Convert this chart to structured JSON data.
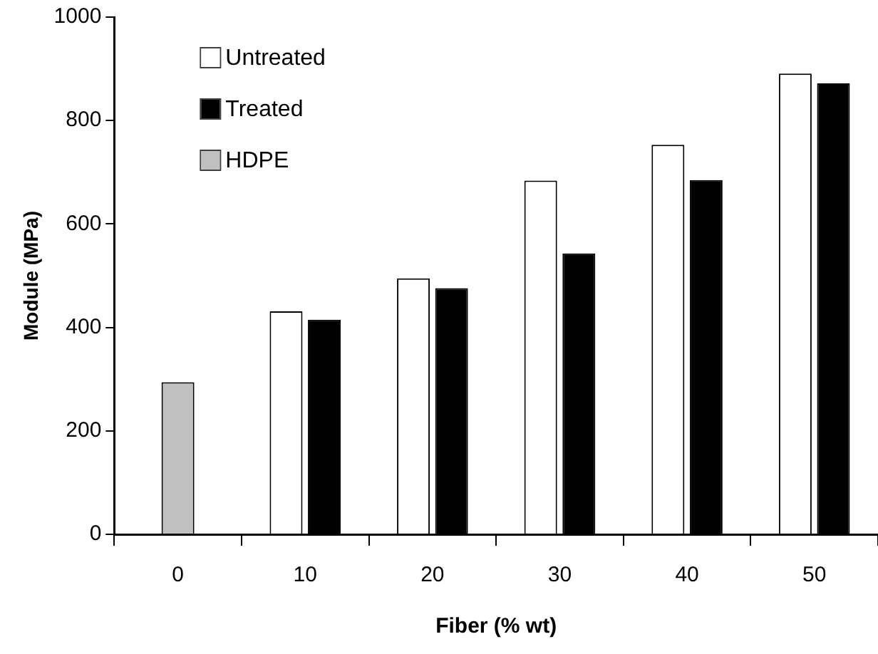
{
  "chart_data": {
    "type": "bar",
    "xlabel": "Fiber (% wt)",
    "ylabel": "Module (MPa)",
    "categories": [
      "0",
      "10",
      "20",
      "30",
      "40",
      "50"
    ],
    "series": [
      {
        "name": "Untreated",
        "color": "#ffffff",
        "values": [
          null,
          431,
          495,
          684,
          753,
          891
        ]
      },
      {
        "name": "Treated",
        "color": "#000000",
        "values": [
          null,
          415,
          476,
          543,
          685,
          872
        ]
      },
      {
        "name": "HDPE",
        "color": "#c0c0c0",
        "values": [
          294,
          null,
          null,
          null,
          null,
          null
        ]
      }
    ],
    "ylim": [
      0,
      1000
    ],
    "yticks": [
      0,
      200,
      400,
      600,
      800,
      1000
    ],
    "grid": false,
    "legend": "top left"
  }
}
